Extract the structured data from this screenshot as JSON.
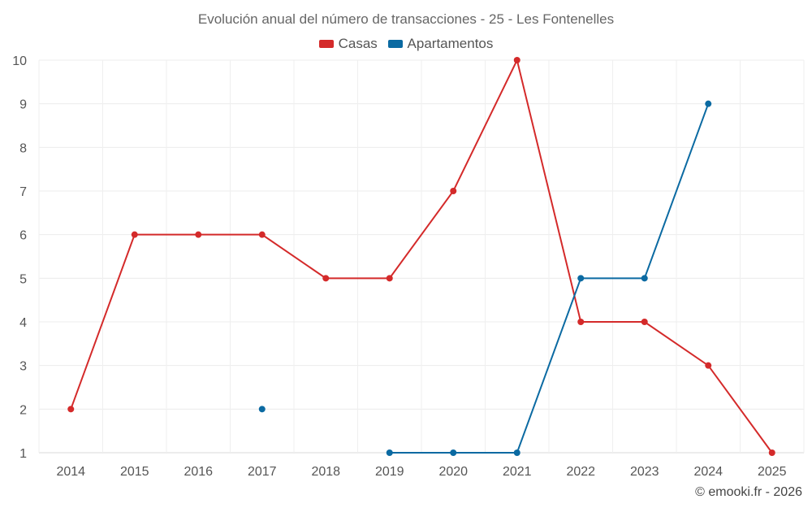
{
  "chart_data": {
    "type": "line",
    "title": "Evolución anual del número de transacciones - 25 - Les Fontenelles",
    "categories": [
      "2014",
      "2015",
      "2016",
      "2017",
      "2018",
      "2019",
      "2020",
      "2021",
      "2022",
      "2023",
      "2024",
      "2025"
    ],
    "series": [
      {
        "name": "Casas",
        "color": "#d42a2a",
        "values": [
          2,
          6,
          6,
          6,
          5,
          5,
          7,
          10,
          4,
          4,
          3,
          1
        ]
      },
      {
        "name": "Apartamentos",
        "color": "#0b6aa2",
        "values": [
          null,
          null,
          null,
          2,
          null,
          1,
          1,
          1,
          5,
          5,
          9,
          null
        ]
      }
    ],
    "ylim": [
      1,
      10
    ],
    "yticks": [
      1,
      2,
      3,
      4,
      5,
      6,
      7,
      8,
      9,
      10
    ],
    "xlabel": "",
    "ylabel": "",
    "grid": true,
    "legend": "top-center"
  },
  "footer": {
    "credit": "© emooki.fr - 2026"
  }
}
